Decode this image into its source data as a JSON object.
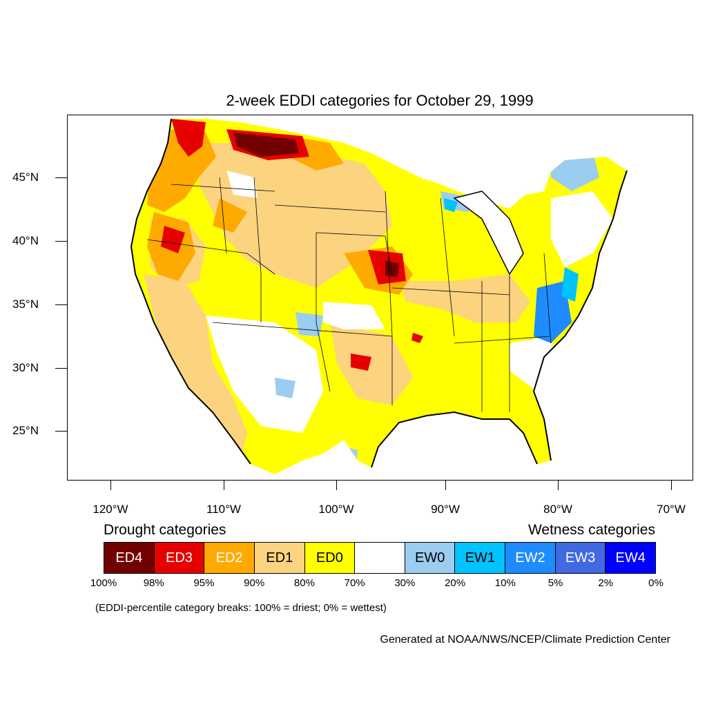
{
  "title": "2-week EDDI categories for October 29, 1999",
  "map": {
    "lat_labels": [
      "45°N",
      "40°N",
      "35°N",
      "30°N",
      "25°N"
    ],
    "lon_labels": [
      "120°W",
      "110°W",
      "100°W",
      "90°W",
      "80°W",
      "70°W"
    ]
  },
  "legend": {
    "drought_heading": "Drought categories",
    "wetness_heading": "Wetness categories",
    "categories": [
      {
        "label": "ED4",
        "color": "#730000",
        "text_color": "#ffffff"
      },
      {
        "label": "ED3",
        "color": "#e60000",
        "text_color": "#ffffff"
      },
      {
        "label": "ED2",
        "color": "#ffaa00",
        "text_color": "#ffffff"
      },
      {
        "label": "ED1",
        "color": "#fcd37f",
        "text_color": "#000000"
      },
      {
        "label": "ED0",
        "color": "#ffff00",
        "text_color": "#000000"
      },
      {
        "label": "",
        "color": "#ffffff",
        "text_color": "#000000"
      },
      {
        "label": "EW0",
        "color": "#9bcdf0",
        "text_color": "#000000"
      },
      {
        "label": "EW1",
        "color": "#00c3ff",
        "text_color": "#000000"
      },
      {
        "label": "EW2",
        "color": "#1e8cff",
        "text_color": "#ffffff"
      },
      {
        "label": "EW3",
        "color": "#4169e1",
        "text_color": "#ffffff"
      },
      {
        "label": "EW4",
        "color": "#0000ff",
        "text_color": "#ffffff"
      }
    ],
    "percent_breaks": [
      "100%",
      "98%",
      "95%",
      "90%",
      "80%",
      "70%",
      "30%",
      "20%",
      "10%",
      "5%",
      "2%",
      "0%"
    ]
  },
  "note": "(EDDI-percentile category breaks: 100% = driest; 0% = wettest)",
  "credit": "Generated at NOAA/NWS/NCEP/Climate Prediction Center"
}
